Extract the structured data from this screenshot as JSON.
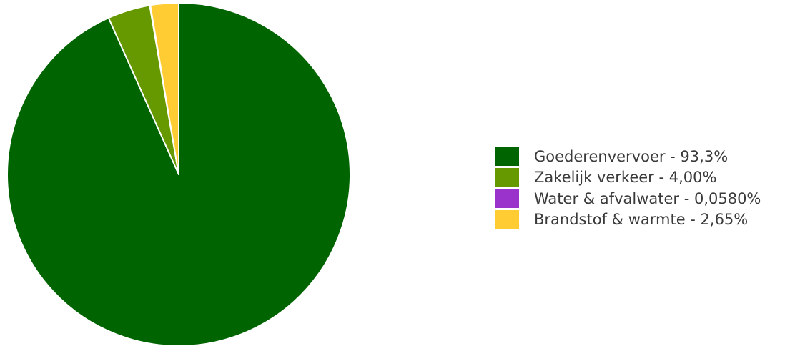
{
  "chart_data": {
    "type": "pie",
    "slices": [
      {
        "label": "Goederenvervoer",
        "value": 93.3,
        "value_text": "93,3%",
        "color": "#006400"
      },
      {
        "label": "Zakelijk verkeer",
        "value": 4.0,
        "value_text": "4,00%",
        "color": "#669900"
      },
      {
        "label": "Water & afvalwater",
        "value": 0.058,
        "value_text": "0,0580%",
        "color": "#9933cc"
      },
      {
        "label": "Brandstof & warmte",
        "value": 2.65,
        "value_text": "2,65%",
        "color": "#ffcc33"
      }
    ],
    "legend_position": "right",
    "slice_border_color": "#ffffff"
  }
}
